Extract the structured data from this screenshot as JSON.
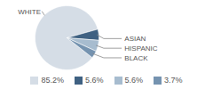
{
  "chart_data": {
    "type": "pie",
    "categories": [
      "WHITE",
      "ASIAN",
      "HISPANIC",
      "BLACK"
    ],
    "values": [
      85.2,
      5.6,
      5.6,
      3.7
    ],
    "value_labels": [
      "85.2%",
      "5.6%",
      "5.6%",
      "3.7%"
    ],
    "colors": [
      "#d5dde6",
      "#3f6182",
      "#a7bccf",
      "#7593b0"
    ],
    "legend": "bottom"
  }
}
